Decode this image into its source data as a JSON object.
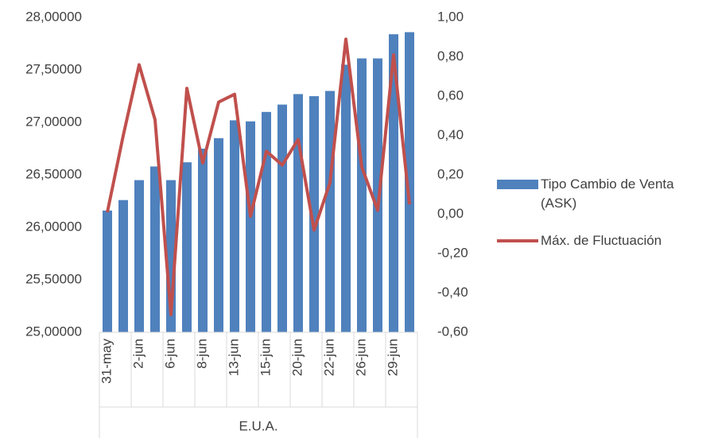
{
  "chart_data": {
    "type": "bar_line",
    "categories": [
      "31-may",
      null,
      "2-jun",
      null,
      "6-jun",
      null,
      "8-jun",
      null,
      "13-jun",
      null,
      "15-jun",
      null,
      "20-jun",
      null,
      "22-jun",
      null,
      "26-jun",
      null,
      "29-jun",
      null
    ],
    "group_label": "E.U.A.",
    "series": [
      {
        "name": "Tipo Cambio de Venta (ASK)",
        "type": "bar",
        "color": "#4f81bd",
        "values": [
          26.16,
          26.26,
          26.45,
          26.58,
          26.45,
          26.62,
          26.75,
          26.85,
          27.02,
          27.01,
          27.1,
          27.17,
          27.27,
          27.25,
          27.3,
          27.55,
          27.61,
          27.61,
          27.84,
          27.86
        ]
      },
      {
        "name": "Máx. de Fluctuación",
        "type": "line",
        "axis": "y2",
        "color": "#c0504d",
        "values": [
          0.01,
          0.4,
          0.76,
          0.48,
          -0.51,
          0.64,
          0.26,
          0.57,
          0.61,
          -0.01,
          0.32,
          0.25,
          0.38,
          -0.08,
          0.16,
          0.89,
          0.24,
          0.02,
          0.81,
          0.05
        ]
      }
    ],
    "ylim": [
      25,
      28
    ],
    "yticks": [
      {
        "value": 25,
        "label": "25,00000"
      },
      {
        "value": 25.5,
        "label": "25,50000"
      },
      {
        "value": 26,
        "label": "26,00000"
      },
      {
        "value": 26.5,
        "label": "26,50000"
      },
      {
        "value": 27,
        "label": "27,00000"
      },
      {
        "value": 27.5,
        "label": "27,50000"
      },
      {
        "value": 28,
        "label": "28,00000"
      }
    ],
    "y2lim": [
      -0.6,
      1.0
    ],
    "y2ticks": [
      {
        "value": -0.6,
        "label": "-0,60"
      },
      {
        "value": -0.4,
        "label": "-0,40"
      },
      {
        "value": -0.2,
        "label": "-0,20"
      },
      {
        "value": 0,
        "label": "0,00"
      },
      {
        "value": 0.2,
        "label": "0,20"
      },
      {
        "value": 0.4,
        "label": "0,40"
      },
      {
        "value": 0.6,
        "label": "0,60"
      },
      {
        "value": 0.8,
        "label": "0,80"
      },
      {
        "value": 1.0,
        "label": "1,00"
      }
    ],
    "legend": "right",
    "grid": false
  }
}
